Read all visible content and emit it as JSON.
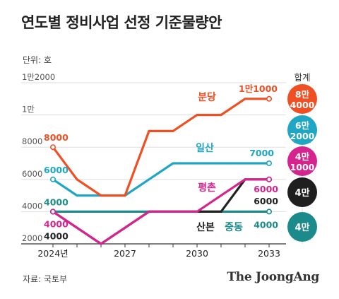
{
  "title": "연도별 정비사업 선정 기준물량안",
  "unit_label": "단위: 호",
  "source_label": "자료: 국토부",
  "brand": "The JoongAng",
  "total_header": "합계",
  "colors": {
    "bundang": "#f04e23",
    "ilsan": "#1ea6c4",
    "pyeongchon": "#d6248e",
    "sanbon": "#222222",
    "jungdong": "#1b8a8a",
    "grid": "#dddddd",
    "axis": "#333333"
  },
  "chart_data": {
    "type": "line",
    "title": "연도별 정비사업 선정 기준물량안",
    "xlabel": "",
    "ylabel": "",
    "x": [
      2024,
      2025,
      2026,
      2027,
      2028,
      2029,
      2030,
      2031,
      2032,
      2033
    ],
    "x_tick_values": [
      2024,
      2027,
      2030,
      2033
    ],
    "x_tick_labels": [
      "2024년",
      "2027",
      "2030",
      "2033"
    ],
    "ylim": [
      2000,
      12000
    ],
    "y_tick_values": [
      2000,
      4000,
      6000,
      8000,
      10000,
      12000
    ],
    "y_tick_labels": [
      "2000",
      "4000",
      "6000",
      "8000",
      "1만",
      "1만2000"
    ],
    "grid": true,
    "series": [
      {
        "name": "분당",
        "key": "bundang",
        "values": [
          8000,
          6000,
          5000,
          5000,
          9000,
          9000,
          10000,
          10000,
          11000,
          11000
        ],
        "start_label": "8000",
        "end_label": "1만1000",
        "total": [
          "8만",
          "4000"
        ]
      },
      {
        "name": "일산",
        "key": "ilsan",
        "values": [
          6000,
          5000,
          5000,
          5000,
          6000,
          7000,
          7000,
          7000,
          7000,
          7000
        ],
        "start_label": "6000",
        "end_label": "7000",
        "total": [
          "6만",
          "2000"
        ]
      },
      {
        "name": "평촌",
        "key": "pyeongchon",
        "values": [
          4000,
          3000,
          2000,
          3000,
          4000,
          4000,
          4000,
          5000,
          6000,
          6000
        ],
        "start_label": "4000",
        "end_label": "6000",
        "total": [
          "4만",
          "1000"
        ]
      },
      {
        "name": "산본",
        "key": "sanbon",
        "values": [
          4000,
          3000,
          2000,
          3000,
          4000,
          4000,
          4000,
          4000,
          6000,
          6000
        ],
        "start_label": "4000",
        "end_label": "6000",
        "total": [
          "4만"
        ]
      },
      {
        "name": "중동",
        "key": "jungdong",
        "values": [
          4000,
          4000,
          4000,
          4000,
          4000,
          4000,
          4000,
          4000,
          4000,
          4000
        ],
        "start_label": "4000",
        "end_label": "4000",
        "total": [
          "4만"
        ]
      }
    ]
  }
}
